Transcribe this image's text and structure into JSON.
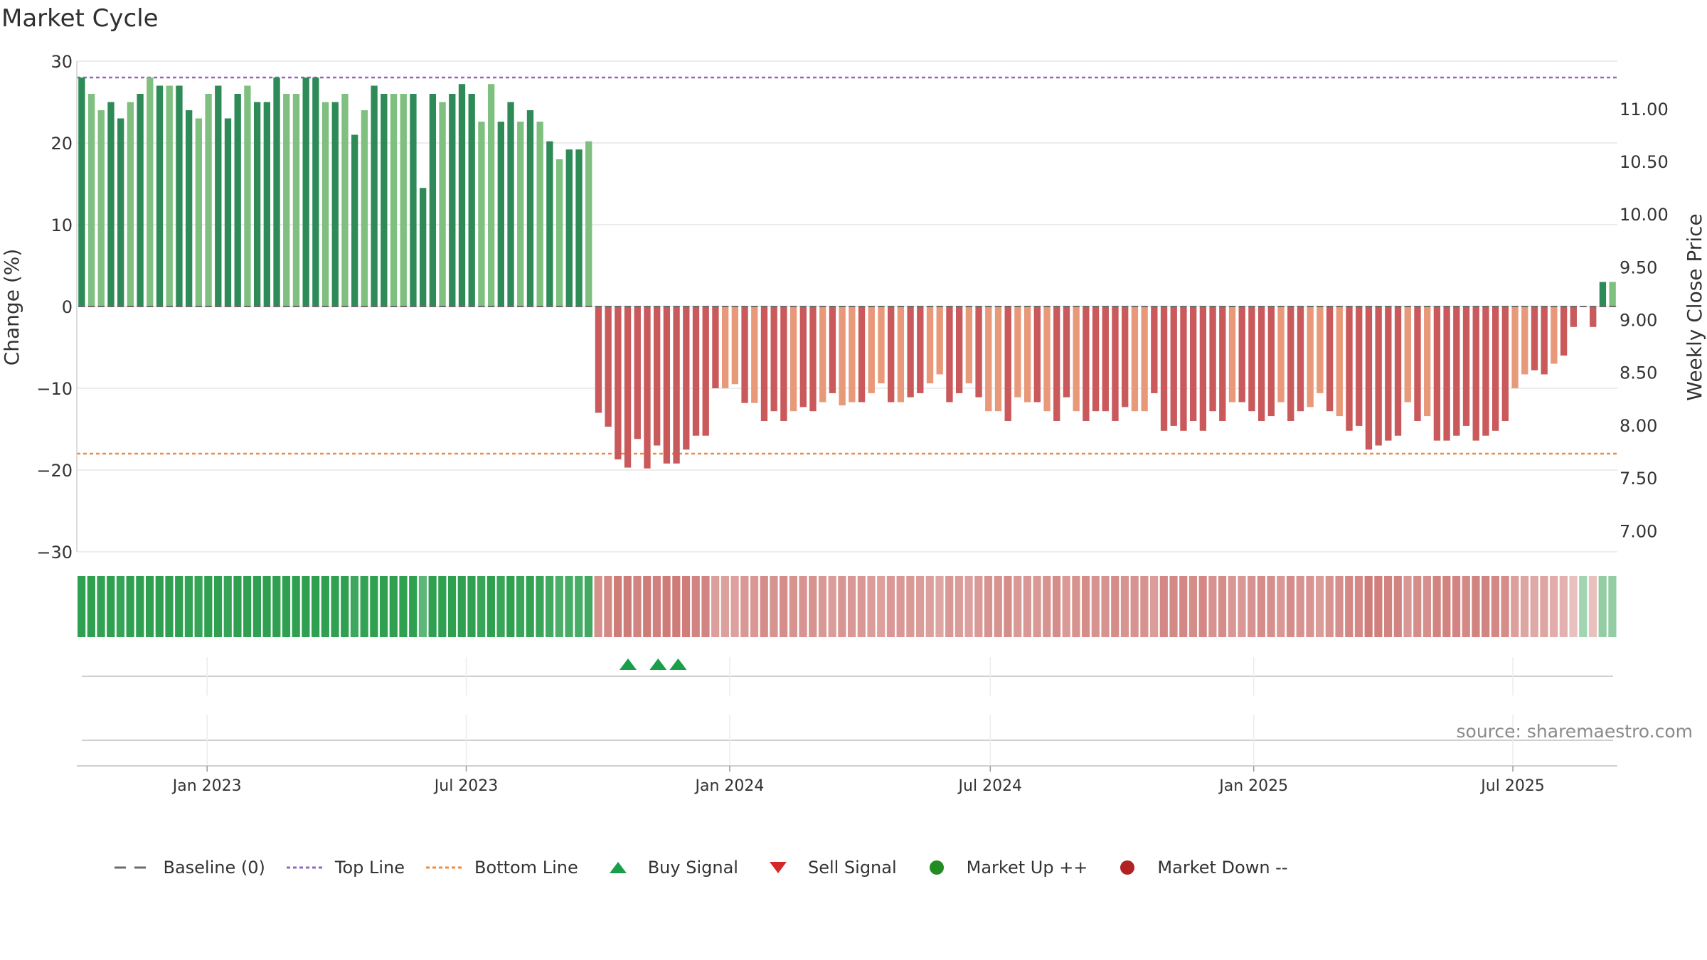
{
  "title": "Market Cycle",
  "source": "source: sharemaestro.com",
  "legend": [
    {
      "label": "Baseline (0)",
      "icon": "dash-line-icon",
      "color": "#6b6b6b"
    },
    {
      "label": "Top Line",
      "icon": "dotted-line-icon",
      "color": "#9467bd"
    },
    {
      "label": "Bottom Line",
      "icon": "dotted-line-icon",
      "color": "#f08c42"
    },
    {
      "label": "Buy Signal",
      "icon": "triangle-up-icon",
      "color": "#1a9e4a"
    },
    {
      "label": "Sell Signal",
      "icon": "triangle-down-icon",
      "color": "#d62728"
    },
    {
      "label": "Market Up ++",
      "icon": "circle-icon",
      "color": "#228b22"
    },
    {
      "label": "Market Down --",
      "icon": "circle-icon",
      "color": "#b22222"
    }
  ],
  "chart_data": {
    "type": "bar",
    "title": "Market Cycle",
    "ylabel": "Change (%)",
    "y2label": "Weekly Close Price",
    "ylim": [
      -30,
      30
    ],
    "yticks": [
      30,
      20,
      10,
      0,
      -10,
      -20,
      -30
    ],
    "yticklabels": [
      "30",
      "20",
      "10",
      "0",
      "−10",
      "−20",
      "−30"
    ],
    "y2ticks": [
      "11.00",
      "10.50",
      "10.00",
      "9.50",
      "9.00",
      "8.50",
      "8.00",
      "7.50",
      "7.00"
    ],
    "y2lim": [
      6.8,
      11.45
    ],
    "top_line": 28,
    "bottom_line": -18,
    "baseline": 0,
    "xlim": [
      "2022-10-02",
      "2025-09-12"
    ],
    "xticks": [
      {
        "date": "2023-01-01",
        "label": "Jan 2023"
      },
      {
        "date": "2023-07-01",
        "label": "Jul 2023"
      },
      {
        "date": "2024-01-01",
        "label": "Jan 2024"
      },
      {
        "date": "2024-07-01",
        "label": "Jul 2024"
      },
      {
        "date": "2025-01-01",
        "label": "Jan 2025"
      },
      {
        "date": "2025-07-01",
        "label": "Jul 2025"
      }
    ],
    "start_week": "2022-10-02",
    "values": [
      28,
      26,
      24,
      25,
      23,
      25,
      26,
      28,
      27,
      27,
      27,
      24,
      23,
      26,
      27,
      23,
      26,
      27,
      25,
      25,
      28,
      26,
      26,
      28,
      28,
      25,
      25,
      26,
      21,
      24,
      27,
      26,
      26,
      26,
      26,
      14.5,
      26,
      25,
      26,
      27.2,
      26,
      22.6,
      27.2,
      22.6,
      25,
      22.6,
      24,
      22.6,
      20.2,
      18,
      19.2,
      19.2,
      20.2,
      -13,
      -14.7,
      -18.7,
      -19.7,
      -16.2,
      -19.8,
      -17,
      -19.2,
      -19.2,
      -17.5,
      -15.8,
      -15.8,
      -10,
      -10,
      -9.5,
      -11.8,
      -11.8,
      -14,
      -12.8,
      -14,
      -12.8,
      -12.3,
      -12.8,
      -11.7,
      -10.6,
      -12.1,
      -11.7,
      -11.7,
      -10.6,
      -9.4,
      -11.7,
      -11.7,
      -11.1,
      -10.6,
      -9.4,
      -8.3,
      -11.7,
      -10.6,
      -9.4,
      -11.1,
      -12.8,
      -12.8,
      -14,
      -11.1,
      -11.7,
      -11.7,
      -12.8,
      -14,
      -11.1,
      -12.8,
      -14,
      -12.8,
      -12.8,
      -14,
      -12.3,
      -12.8,
      -12.8,
      -10.6,
      -15.2,
      -14.6,
      -15.2,
      -14,
      -15.2,
      -12.8,
      -14,
      -11.7,
      -11.7,
      -12.8,
      -14,
      -13.4,
      -11.7,
      -14,
      -12.8,
      -12.3,
      -10.6,
      -12.8,
      -13.4,
      -15.2,
      -14.6,
      -17.5,
      -17,
      -16.4,
      -15.8,
      -11.7,
      -14,
      -13.4,
      -16.4,
      -16.4,
      -15.8,
      -14.6,
      -16.4,
      -15.8,
      -15.2,
      -14,
      -10,
      -8.3,
      -7.8,
      -8.3,
      -7,
      -6,
      -2.5,
      0,
      -2.5,
      3,
      3
    ],
    "bar_colors": [
      "#2e8b57",
      "#7fbf7f"
    ],
    "negative_colors": [
      "#c9595b",
      "#e8997a"
    ],
    "buy_signals": [
      "2023-10-22",
      "2023-11-12",
      "2023-11-26"
    ],
    "sell_signals": [],
    "market_up": [],
    "market_down": []
  }
}
